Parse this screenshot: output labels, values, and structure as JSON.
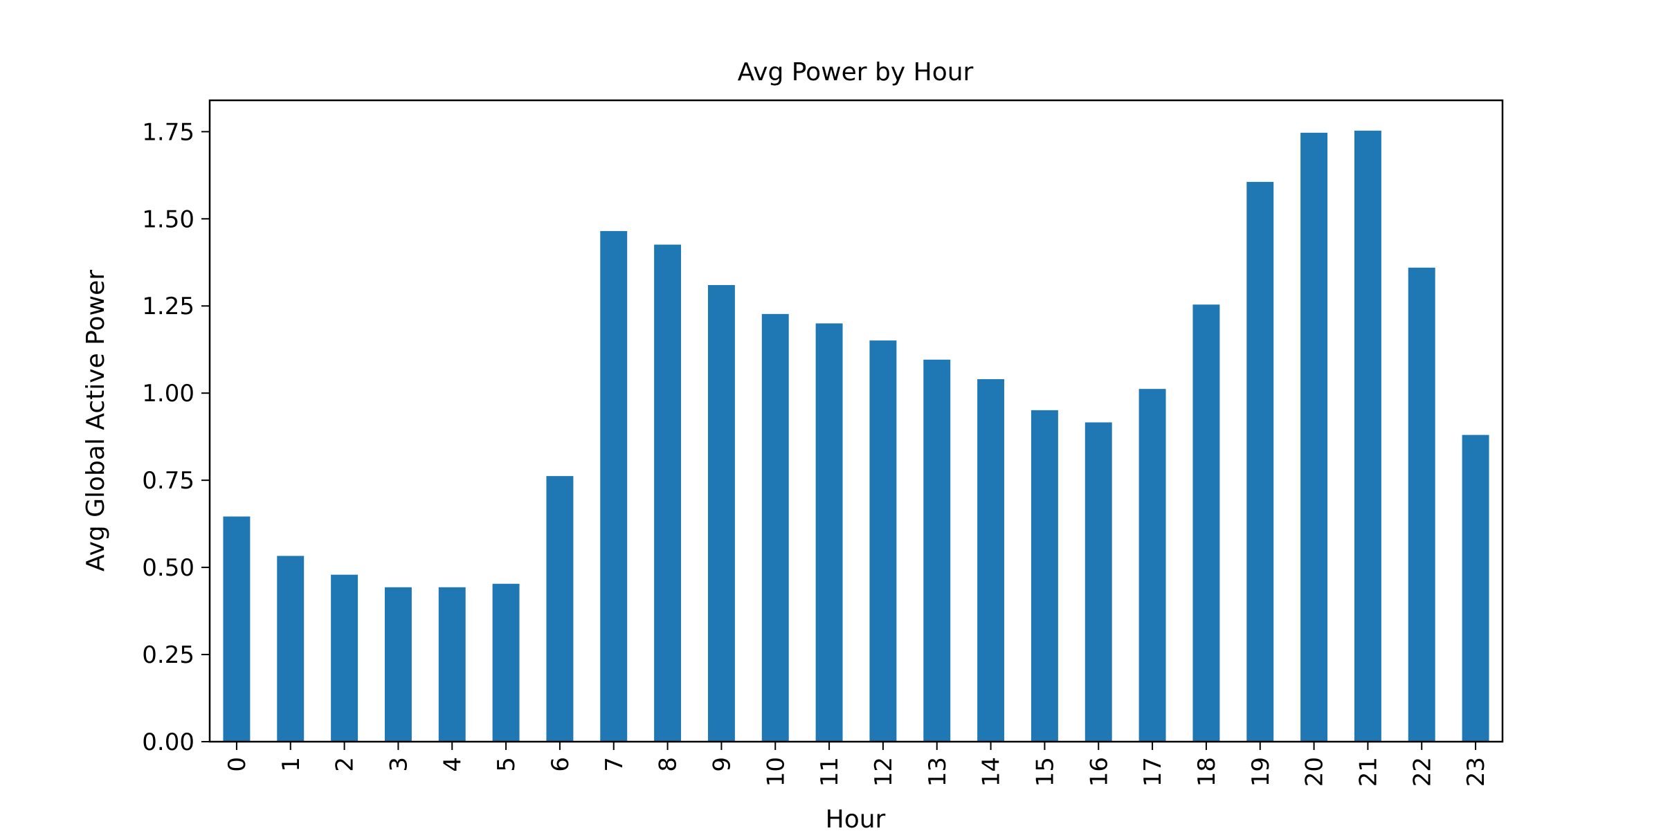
{
  "chart_data": {
    "type": "bar",
    "title": "Avg Power by Hour",
    "xlabel": "Hour",
    "ylabel": "Avg Global Active Power",
    "categories": [
      "0",
      "1",
      "2",
      "3",
      "4",
      "5",
      "6",
      "7",
      "8",
      "9",
      "10",
      "11",
      "12",
      "13",
      "14",
      "15",
      "16",
      "17",
      "18",
      "19",
      "20",
      "21",
      "22",
      "23"
    ],
    "values": [
      0.646,
      0.533,
      0.479,
      0.443,
      0.443,
      0.453,
      0.762,
      1.465,
      1.426,
      1.31,
      1.227,
      1.2,
      1.151,
      1.096,
      1.04,
      0.951,
      0.916,
      1.012,
      1.254,
      1.606,
      1.747,
      1.753,
      1.36,
      0.88
    ],
    "ylim": [
      0,
      1.84
    ],
    "yticks": [
      0.0,
      0.25,
      0.5,
      0.75,
      1.0,
      1.25,
      1.5,
      1.75
    ],
    "ytick_labels": [
      "0.00",
      "0.25",
      "0.50",
      "0.75",
      "1.00",
      "1.25",
      "1.50",
      "1.75"
    ],
    "bar_color": "#1f77b4",
    "grid": false,
    "legend": "none"
  }
}
